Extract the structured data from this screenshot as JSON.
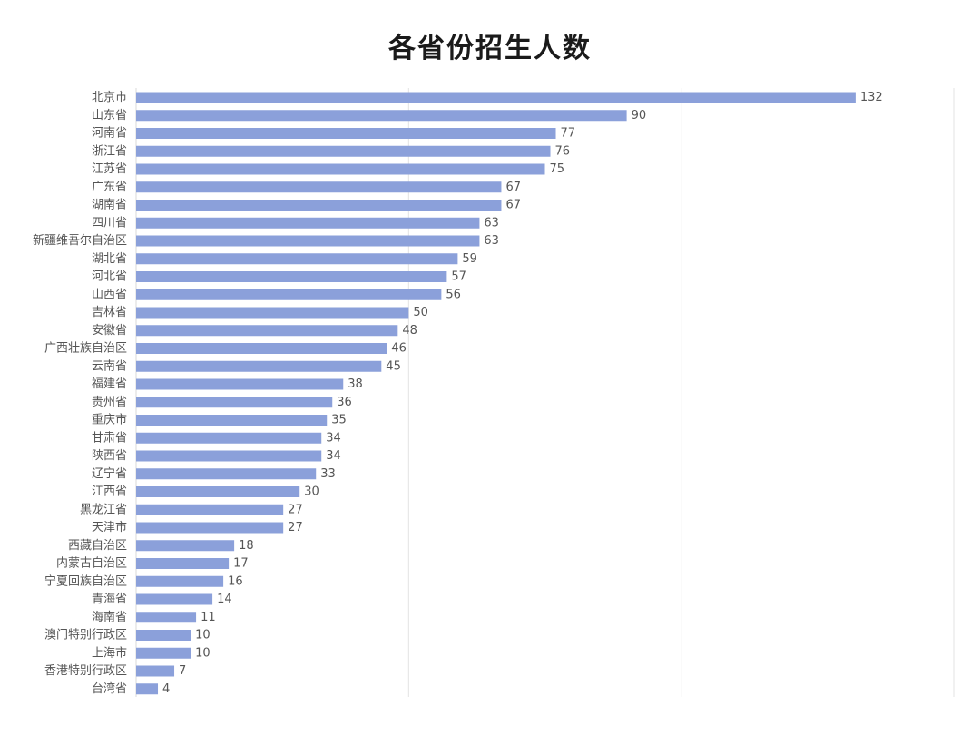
{
  "chart_data": {
    "type": "bar",
    "orientation": "horizontal",
    "title": "各省份招生人数",
    "xlabel": "",
    "ylabel": "",
    "xlim": [
      0,
      150
    ],
    "grid": true,
    "legend": "none",
    "bar_color": "#8ba0da",
    "categories": [
      "北京市",
      "山东省",
      "河南省",
      "浙江省",
      "江苏省",
      "广东省",
      "湖南省",
      "四川省",
      "新疆维吾尔自治区",
      "湖北省",
      "河北省",
      "山西省",
      "吉林省",
      "安徽省",
      "广西壮族自治区",
      "云南省",
      "福建省",
      "贵州省",
      "重庆市",
      "甘肃省",
      "陕西省",
      "辽宁省",
      "江西省",
      "黑龙江省",
      "天津市",
      "西藏自治区",
      "内蒙古自治区",
      "宁夏回族自治区",
      "青海省",
      "海南省",
      "澳门特别行政区",
      "上海市",
      "香港特别行政区",
      "台湾省"
    ],
    "values": [
      132,
      90,
      77,
      76,
      75,
      67,
      67,
      63,
      63,
      59,
      57,
      56,
      50,
      48,
      46,
      45,
      38,
      36,
      35,
      34,
      34,
      33,
      30,
      27,
      27,
      18,
      17,
      16,
      14,
      11,
      10,
      10,
      7,
      4
    ]
  }
}
